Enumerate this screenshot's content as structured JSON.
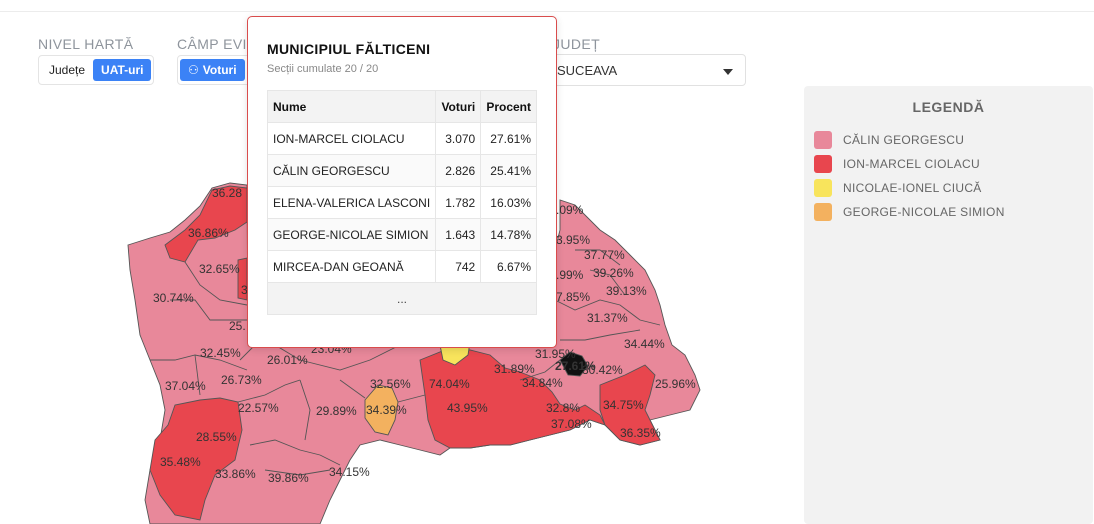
{
  "controls": {
    "nivel_label": "NIVEL HARTĂ",
    "nivel_options": [
      "Județe",
      "UAT-uri"
    ],
    "camp_label": "CÂMP EVI",
    "camp_button": "Voturi",
    "judet_label": "JUDEȚ",
    "judet_value": "SUCEAVA"
  },
  "legend": {
    "title": "LEGENDĂ",
    "items": [
      {
        "label": "CĂLIN GEORGESCU",
        "color": "#e8889a"
      },
      {
        "label": "ION-MARCEL CIOLACU",
        "color": "#e8464e"
      },
      {
        "label": "NICOLAE-IONEL CIUCĂ",
        "color": "#f8e45c"
      },
      {
        "label": "GEORGE-NICOLAE SIMION",
        "color": "#f3b15f"
      }
    ]
  },
  "popup": {
    "title": "MUNICIPIUL FĂLTICENI",
    "subtitle": "Secții cumulate 20 / 20",
    "headers": [
      "Nume",
      "Voturi",
      "Procent"
    ],
    "rows": [
      [
        "ION-MARCEL CIOLACU",
        "3.070",
        "27.61%"
      ],
      [
        "CĂLIN GEORGESCU",
        "2.826",
        "25.41%"
      ],
      [
        "ELENA-VALERICA LASCONI",
        "1.782",
        "16.03%"
      ],
      [
        "GEORGE-NICOLAE SIMION",
        "1.643",
        "14.78%"
      ],
      [
        "MIRCEA-DAN GEOANĂ",
        "742",
        "6.67%"
      ]
    ],
    "more": "..."
  },
  "map": {
    "colors": {
      "georgescu": "#e8889a",
      "ciolacu": "#e8464e",
      "ciuca": "#f8e45c",
      "simion": "#f3b15f",
      "selected": "#111111"
    },
    "labels": [
      "36.28",
      "36.86%",
      "32.65%",
      "30.74%",
      "25.",
      "32.45%",
      "26.01%",
      "23.04%",
      "37.04%",
      "26.73%",
      "22.57%",
      "28.55%",
      "35.48%",
      "33.86%",
      "39.86%",
      "34.15%",
      "29.89%",
      "32.56%",
      "34.39%",
      "74.04%",
      "43.95%",
      "31.89%",
      "34.84%",
      "32.8%",
      "37.08%",
      "34.75%",
      "36.35%",
      "31.95%",
      "27.61%",
      "30.42%",
      "25.96%",
      "34.44%",
      "31.37%",
      "39.13%",
      "39.26%",
      "37.77%",
      ".99%",
      ".09%",
      "7.85%",
      "3",
      "3.95%"
    ]
  }
}
